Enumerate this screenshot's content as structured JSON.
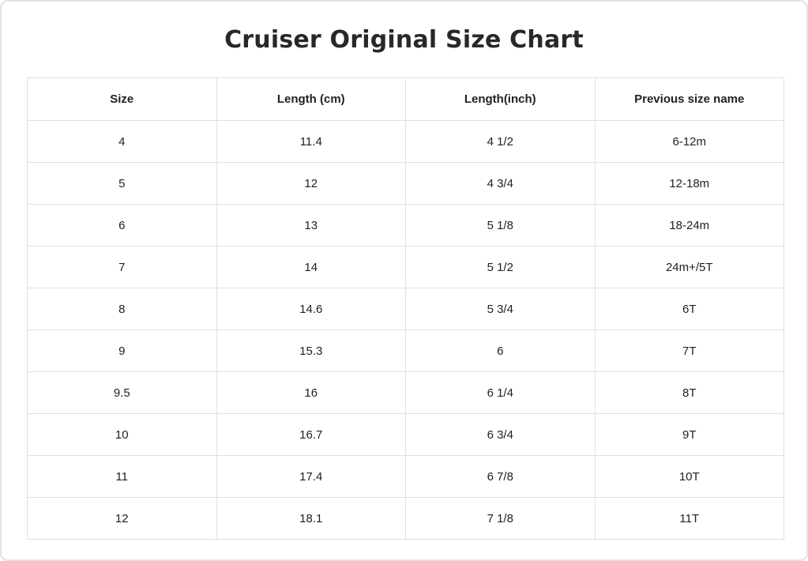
{
  "page": {
    "title": "Cruiser Original Size Chart"
  },
  "colors": {
    "background": "#ffffff",
    "card_border": "#e3e3e3",
    "table_border": "#e0e0e0",
    "text": "#212121",
    "title_text": "#26282b"
  },
  "table": {
    "columns": [
      "Size",
      "Length (cm)",
      "Length(inch)",
      "Previous size name"
    ],
    "rows": [
      [
        "4",
        "11.4",
        "4 1/2",
        "6-12m"
      ],
      [
        "5",
        "12",
        "4 3/4",
        "12-18m"
      ],
      [
        "6",
        "13",
        "5 1/8",
        "18-24m"
      ],
      [
        "7",
        "14",
        "5 1/2",
        "24m+/5T"
      ],
      [
        "8",
        "14.6",
        "5 3/4",
        "6T"
      ],
      [
        "9",
        "15.3",
        "6",
        "7T"
      ],
      [
        "9.5",
        "16",
        "6 1/4",
        "8T"
      ],
      [
        "10",
        "16.7",
        "6 3/4",
        "9T"
      ],
      [
        "11",
        "17.4",
        "6 7/8",
        "10T"
      ],
      [
        "12",
        "18.1",
        "7 1/8",
        "11T"
      ]
    ]
  },
  "chart_data": {
    "type": "table",
    "title": "Cruiser Original Size Chart",
    "columns": [
      "Size",
      "Length (cm)",
      "Length(inch)",
      "Previous size name"
    ],
    "rows": [
      [
        "4",
        "11.4",
        "4 1/2",
        "6-12m"
      ],
      [
        "5",
        "12",
        "4 3/4",
        "12-18m"
      ],
      [
        "6",
        "13",
        "5 1/8",
        "18-24m"
      ],
      [
        "7",
        "14",
        "5 1/2",
        "24m+/5T"
      ],
      [
        "8",
        "14.6",
        "5 3/4",
        "6T"
      ],
      [
        "9",
        "15.3",
        "6",
        "7T"
      ],
      [
        "9.5",
        "16",
        "6 1/4",
        "8T"
      ],
      [
        "10",
        "16.7",
        "6 3/4",
        "9T"
      ],
      [
        "11",
        "17.4",
        "6 7/8",
        "10T"
      ],
      [
        "12",
        "18.1",
        "7 1/8",
        "11T"
      ]
    ]
  }
}
